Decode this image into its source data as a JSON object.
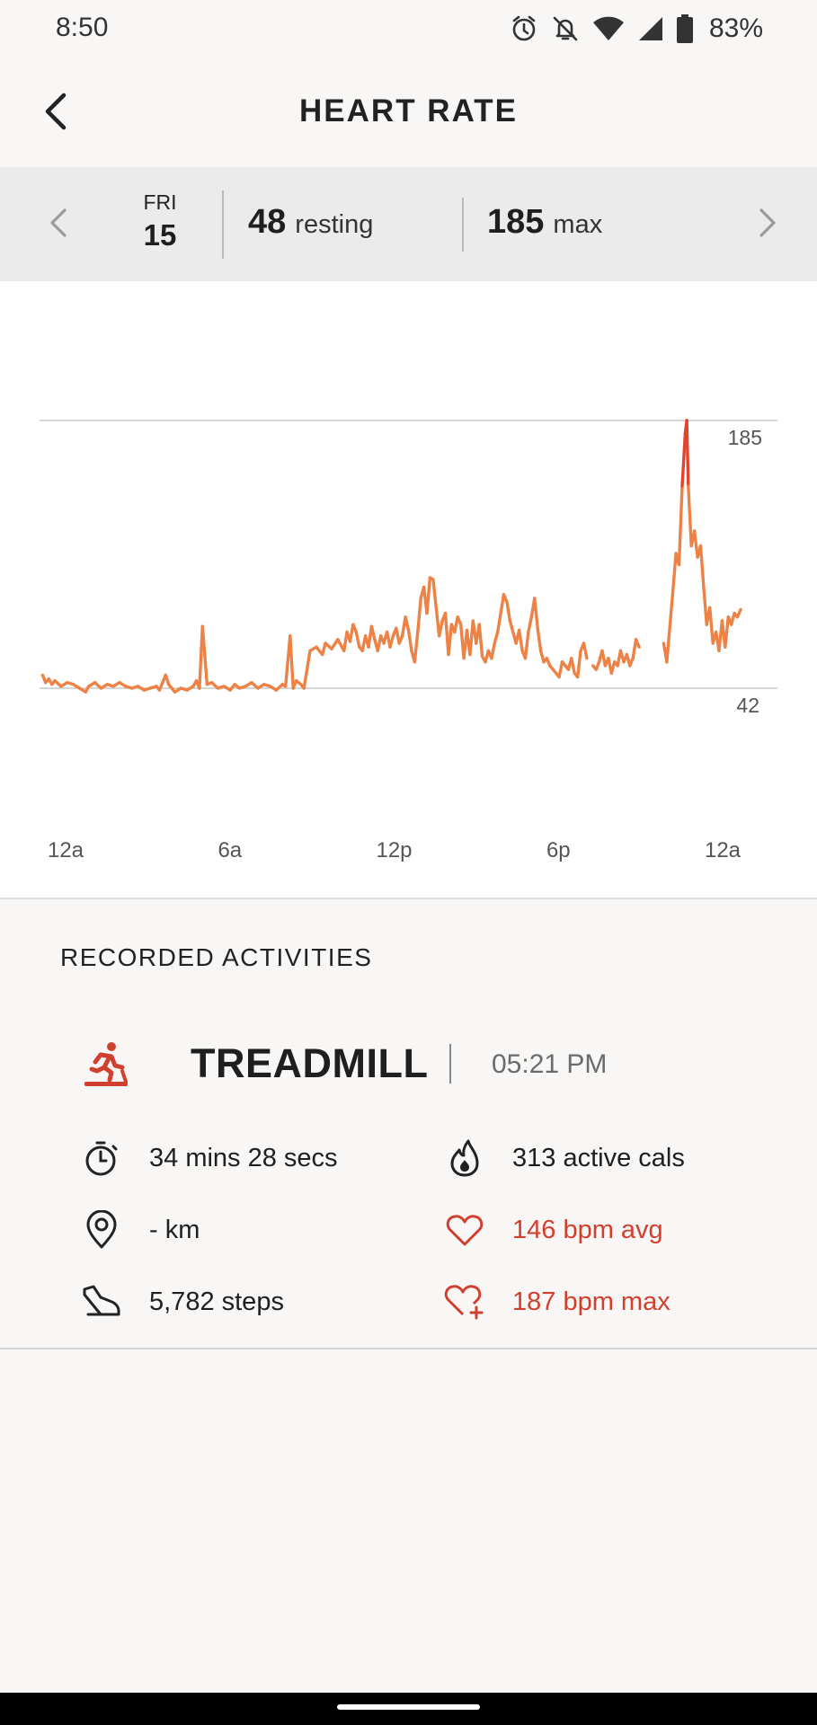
{
  "status_bar": {
    "time": "8:50",
    "battery_text": "83%",
    "icons": [
      "alarm-icon",
      "bell-off-icon",
      "wifi-icon",
      "cell-signal-icon",
      "battery-icon"
    ]
  },
  "app_bar": {
    "title": "HEART RATE"
  },
  "summary": {
    "day_name": "FRI",
    "day_number": "15",
    "resting_value": "48",
    "resting_label": "resting",
    "max_value": "185",
    "max_label": "max"
  },
  "chart_data": {
    "type": "line",
    "ylim": [
      42,
      185
    ],
    "y_reference_labels": [
      "185",
      "42"
    ],
    "x_tick_labels": [
      "12a",
      "6a",
      "12p",
      "6p",
      "12a"
    ],
    "x_range_hours": [
      0,
      24
    ],
    "grid": false,
    "colors": {
      "normal": "#ec8245",
      "peak": "#e0452d"
    },
    "series": [
      {
        "segments": [
          [
            [
              0.1,
              49
            ],
            [
              0.2,
              45
            ],
            [
              0.3,
              47
            ],
            [
              0.4,
              44
            ],
            [
              0.5,
              46
            ],
            [
              0.7,
              43
            ],
            [
              0.9,
              45
            ],
            [
              1.1,
              44
            ],
            [
              1.3,
              42
            ],
            [
              1.5,
              40
            ],
            [
              1.6,
              43
            ],
            [
              1.8,
              45
            ],
            [
              2.0,
              42
            ],
            [
              2.2,
              44
            ],
            [
              2.4,
              43
            ],
            [
              2.6,
              45
            ],
            [
              2.8,
              43
            ],
            [
              3.0,
              42
            ],
            [
              3.2,
              43
            ],
            [
              3.4,
              41
            ],
            [
              3.6,
              42
            ],
            [
              3.8,
              43
            ],
            [
              3.9,
              41
            ],
            [
              4.1,
              49
            ],
            [
              4.2,
              44
            ],
            [
              4.4,
              40
            ],
            [
              4.6,
              42
            ],
            [
              4.8,
              41
            ],
            [
              5.0,
              43
            ],
            [
              5.1,
              46
            ],
            [
              5.2,
              42
            ],
            [
              5.3,
              75
            ],
            [
              5.45,
              44
            ],
            [
              5.6,
              45
            ],
            [
              5.8,
              42
            ],
            [
              6.0,
              43
            ],
            [
              6.2,
              41
            ],
            [
              6.35,
              44
            ],
            [
              6.5,
              42
            ],
            [
              6.7,
              43
            ],
            [
              6.9,
              45
            ],
            [
              7.1,
              42
            ],
            [
              7.3,
              44
            ],
            [
              7.5,
              43
            ],
            [
              7.7,
              41
            ],
            [
              7.9,
              44
            ],
            [
              8.0,
              43
            ],
            [
              8.15,
              70
            ],
            [
              8.25,
              42
            ],
            [
              8.35,
              46
            ],
            [
              8.5,
              44
            ],
            [
              8.6,
              42
            ],
            [
              8.8,
              62
            ],
            [
              9.0,
              64
            ],
            [
              9.2,
              60
            ],
            [
              9.3,
              66
            ],
            [
              9.5,
              63
            ],
            [
              9.7,
              68
            ],
            [
              9.9,
              62
            ],
            [
              10.0,
              72
            ],
            [
              10.1,
              67
            ],
            [
              10.2,
              76
            ],
            [
              10.3,
              72
            ],
            [
              10.4,
              64
            ],
            [
              10.5,
              62
            ],
            [
              10.6,
              70
            ],
            [
              10.7,
              64
            ],
            [
              10.8,
              75
            ],
            [
              10.9,
              68
            ],
            [
              11.0,
              62
            ],
            [
              11.1,
              70
            ],
            [
              11.2,
              66
            ],
            [
              11.3,
              72
            ],
            [
              11.4,
              64
            ],
            [
              11.5,
              70
            ],
            [
              11.6,
              74
            ],
            [
              11.7,
              66
            ],
            [
              11.8,
              70
            ],
            [
              11.9,
              80
            ],
            [
              12.0,
              73
            ],
            [
              12.1,
              62
            ],
            [
              12.2,
              56
            ],
            [
              12.3,
              72
            ],
            [
              12.4,
              90
            ],
            [
              12.5,
              96
            ],
            [
              12.6,
              82
            ],
            [
              12.7,
              101
            ],
            [
              12.8,
              100
            ],
            [
              12.9,
              85
            ],
            [
              13.0,
              70
            ],
            [
              13.1,
              78
            ],
            [
              13.2,
              82
            ],
            [
              13.3,
              60
            ],
            [
              13.4,
              76
            ],
            [
              13.5,
              72
            ],
            [
              13.6,
              80
            ],
            [
              13.7,
              76
            ],
            [
              13.8,
              58
            ],
            [
              13.9,
              73
            ],
            [
              14.0,
              60
            ],
            [
              14.1,
              78
            ],
            [
              14.2,
              66
            ],
            [
              14.3,
              76
            ],
            [
              14.4,
              59
            ],
            [
              14.5,
              56
            ],
            [
              14.6,
              62
            ],
            [
              14.7,
              58
            ],
            [
              14.8,
              66
            ],
            [
              14.9,
              72
            ],
            [
              15.0,
              82
            ],
            [
              15.1,
              92
            ],
            [
              15.2,
              88
            ],
            [
              15.3,
              78
            ],
            [
              15.4,
              72
            ],
            [
              15.5,
              66
            ],
            [
              15.6,
              73
            ],
            [
              15.7,
              62
            ],
            [
              15.8,
              58
            ],
            [
              15.9,
              72
            ],
            [
              16.0,
              80
            ],
            [
              16.1,
              90
            ],
            [
              16.2,
              74
            ],
            [
              16.3,
              62
            ],
            [
              16.4,
              56
            ],
            [
              16.5,
              58
            ],
            [
              16.6,
              54
            ],
            [
              16.7,
              52
            ],
            [
              16.8,
              50
            ],
            [
              16.9,
              48
            ],
            [
              17.0,
              56
            ],
            [
              17.1,
              54
            ],
            [
              17.2,
              52
            ],
            [
              17.3,
              58
            ],
            [
              17.4,
              50
            ],
            [
              17.5,
              48
            ],
            [
              17.6,
              62
            ],
            [
              17.7,
              66
            ],
            [
              17.8,
              58
            ]
          ],
          [
            [
              18.0,
              54
            ],
            [
              18.1,
              52
            ],
            [
              18.2,
              56
            ],
            [
              18.3,
              62
            ],
            [
              18.4,
              54
            ],
            [
              18.5,
              58
            ],
            [
              18.6,
              50
            ],
            [
              18.7,
              56
            ],
            [
              18.8,
              54
            ],
            [
              18.9,
              62
            ],
            [
              19.0,
              56
            ],
            [
              19.1,
              60
            ],
            [
              19.2,
              54
            ],
            [
              19.3,
              58
            ],
            [
              19.4,
              68
            ],
            [
              19.5,
              64
            ]
          ],
          [
            [
              20.3,
              66
            ],
            [
              20.4,
              56
            ],
            [
              20.6,
              94
            ],
            [
              20.7,
              114
            ],
            [
              20.8,
              108
            ],
            [
              20.9,
              150
            ],
            [
              21.0,
              178
            ],
            [
              21.05,
              185
            ],
            [
              21.1,
              150
            ],
            [
              21.2,
              118
            ],
            [
              21.3,
              126
            ],
            [
              21.4,
              112
            ],
            [
              21.5,
              118
            ],
            [
              21.6,
              96
            ],
            [
              21.7,
              76
            ],
            [
              21.8,
              85
            ],
            [
              21.9,
              66
            ],
            [
              22.0,
              72
            ],
            [
              22.1,
              62
            ],
            [
              22.2,
              78
            ],
            [
              22.3,
              64
            ],
            [
              22.4,
              80
            ],
            [
              22.5,
              76
            ],
            [
              22.6,
              82
            ],
            [
              22.7,
              80
            ],
            [
              22.8,
              84
            ]
          ]
        ]
      }
    ]
  },
  "activities": {
    "section_title": "RECORDED ACTIVITIES",
    "items": [
      {
        "icon": "treadmill-icon",
        "name": "TREADMILL",
        "time": "05:21 PM",
        "duration": "34 mins 28 secs",
        "distance": "- km",
        "steps": "5,782 steps",
        "active_cals": "313 active cals",
        "bpm_avg": "146 bpm avg",
        "bpm_max": "187 bpm max"
      }
    ]
  },
  "accent_red": "#d1402f"
}
